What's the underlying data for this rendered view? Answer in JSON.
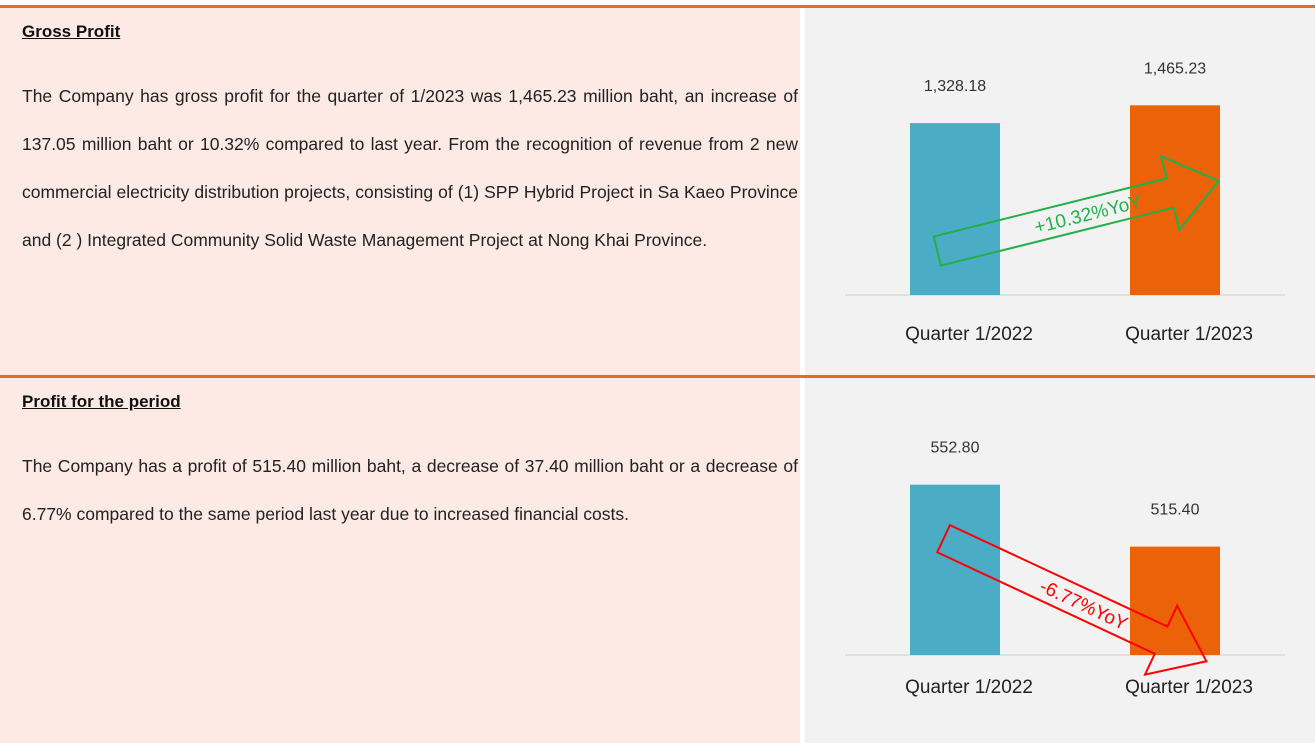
{
  "sections": [
    {
      "heading": "Gross Profit",
      "text": "The Company has gross profit for the quarter of 1/2023 was 1,465.23 million baht, an increase of 137.05 million baht or 10.32% compared to last year. From the recognition of revenue from 2 new commercial electricity distribution projects, consisting of (1) SPP Hybrid Project in Sa Kaeo Province and (2 ) Integrated Community Solid Waste Management Project at Nong Khai Province."
    },
    {
      "heading": "Profit for the period",
      "text": "The Company has a profit of 515.40 million baht, a decrease of 37.40 million baht or a decrease of 6.77% compared to the same period last year due to increased financial costs."
    }
  ],
  "chart_data": [
    {
      "type": "bar",
      "categories": [
        "Quarter 1/2022",
        "Quarter 1/2023"
      ],
      "values": [
        1328.18,
        1465.23
      ],
      "value_labels": [
        "1,328.18",
        "1,465.23"
      ],
      "colors": [
        "#4bacc6",
        "#eb6209"
      ],
      "ylim": [
        0,
        1800
      ],
      "annotation": "+10.32%YoY",
      "annotation_color": "#22b04b"
    },
    {
      "type": "bar",
      "categories": [
        "Quarter 1/2022",
        "Quarter 1/2023"
      ],
      "values": [
        552.8,
        515.4
      ],
      "value_labels": [
        "552.80",
        "515.40"
      ],
      "colors": [
        "#4bacc6",
        "#eb6209"
      ],
      "ylim": [
        450,
        590
      ],
      "annotation": "-6.77%YoY",
      "annotation_color": "#ff0000"
    }
  ]
}
